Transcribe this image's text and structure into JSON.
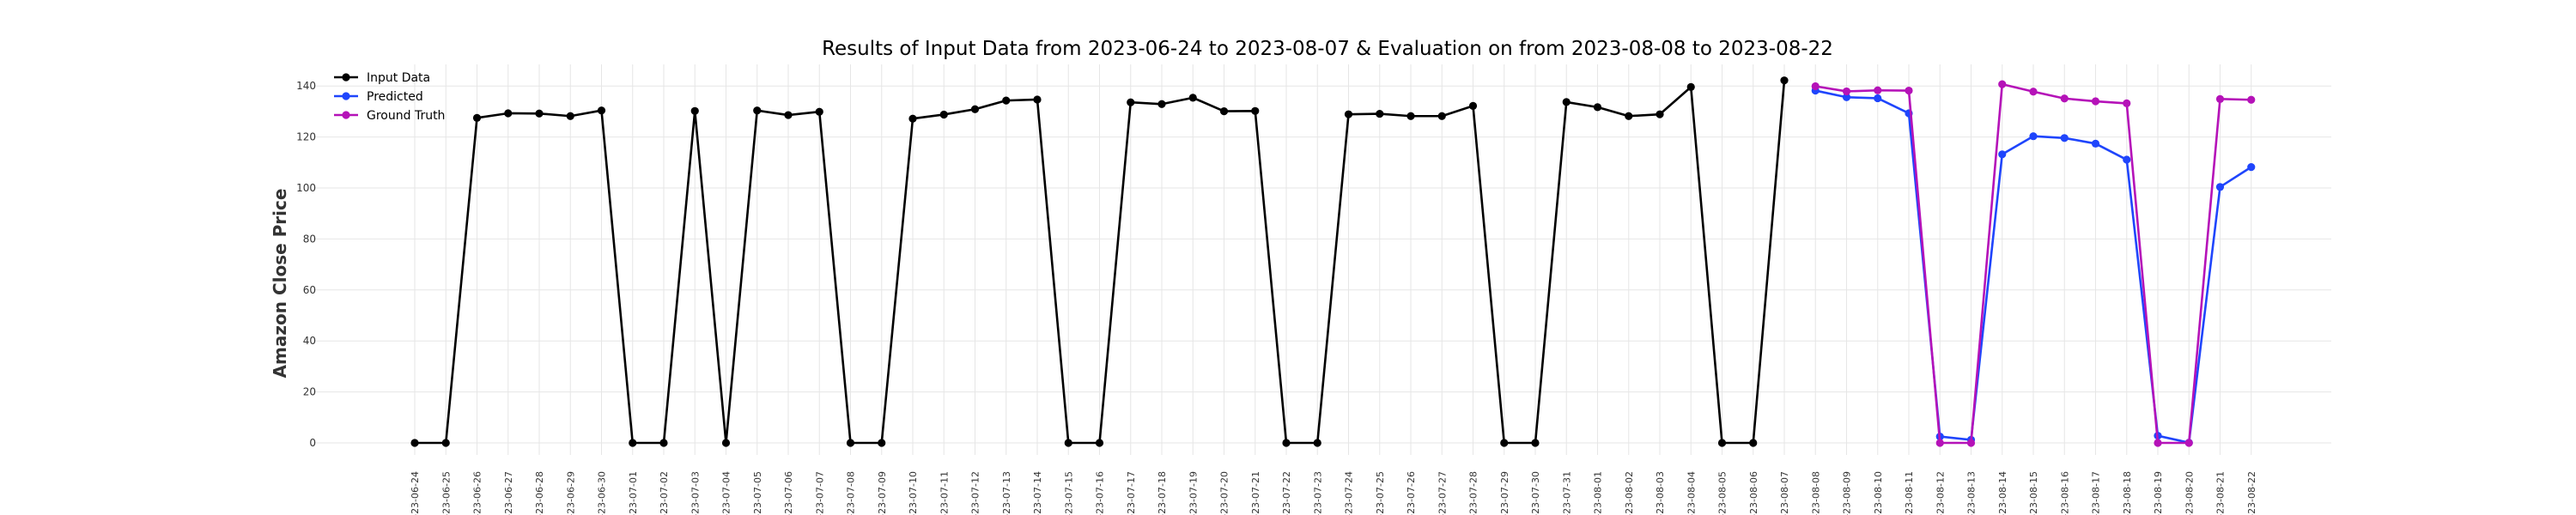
{
  "chart_data": {
    "type": "line",
    "title": "Results of Input Data from 2023-06-24 to 2023-08-07 & Evaluation on from 2023-08-08 to 2023-08-22",
    "xlabel": "",
    "ylabel": "Amazon Close Price",
    "ylim": [
      -8,
      148
    ],
    "yticks": [
      0,
      20,
      40,
      60,
      80,
      100,
      120,
      140
    ],
    "grid": true,
    "legend_position": "top-left",
    "x": [
      "2023-06-24",
      "2023-06-25",
      "2023-06-26",
      "2023-06-27",
      "2023-06-28",
      "2023-06-29",
      "2023-06-30",
      "2023-07-01",
      "2023-07-02",
      "2023-07-03",
      "2023-07-04",
      "2023-07-05",
      "2023-07-06",
      "2023-07-07",
      "2023-07-08",
      "2023-07-09",
      "2023-07-10",
      "2023-07-11",
      "2023-07-12",
      "2023-07-13",
      "2023-07-14",
      "2023-07-15",
      "2023-07-16",
      "2023-07-17",
      "2023-07-18",
      "2023-07-19",
      "2023-07-20",
      "2023-07-21",
      "2023-07-22",
      "2023-07-23",
      "2023-07-24",
      "2023-07-25",
      "2023-07-26",
      "2023-07-27",
      "2023-07-28",
      "2023-07-29",
      "2023-07-30",
      "2023-07-31",
      "2023-08-01",
      "2023-08-02",
      "2023-08-03",
      "2023-08-04",
      "2023-08-05",
      "2023-08-06",
      "2023-08-07",
      "2023-08-08",
      "2023-08-09",
      "2023-08-10",
      "2023-08-11",
      "2023-08-12",
      "2023-08-13",
      "2023-08-14",
      "2023-08-15",
      "2023-08-16",
      "2023-08-17",
      "2023-08-18",
      "2023-08-19",
      "2023-08-20",
      "2023-08-21",
      "2023-08-22"
    ],
    "xtick_labels": [
      "-23-06-24",
      "-23-06-25",
      "-23-06-26",
      "-23-06-27",
      "-23-06-28",
      "-23-06-29",
      "-23-06-30",
      "-23-07-01",
      "-23-07-02",
      "-23-07-03",
      "-23-07-04",
      "-23-07-05",
      "-23-07-06",
      "-23-07-07",
      "-23-07-08",
      "-23-07-09",
      "-23-07-10",
      "-23-07-11",
      "-23-07-12",
      "-23-07-13",
      "-23-07-14",
      "-23-07-15",
      "-23-07-16",
      "-23-07-17",
      "-23-07-18",
      "-23-07-19",
      "-23-07-20",
      "-23-07-21",
      "-23-07-22",
      "-23-07-23",
      "-23-07-24",
      "-23-07-25",
      "-23-07-26",
      "-23-07-27",
      "-23-07-28",
      "-23-07-29",
      "-23-07-30",
      "-23-07-31",
      "-23-08-01",
      "-23-08-02",
      "-23-08-03",
      "-23-08-04",
      "-23-08-05",
      "-23-08-06",
      "-23-08-07",
      "-23-08-08",
      "-23-08-09",
      "-23-08-10",
      "-23-08-11",
      "-23-08-12",
      "-23-08-13",
      "-23-08-14",
      "-23-08-15",
      "-23-08-16",
      "-23-08-17",
      "-23-08-18",
      "-23-08-19",
      "-23-08-20",
      "-23-08-21",
      "-23-08-22"
    ],
    "series": [
      {
        "name": "Input Data",
        "color": "#000000",
        "x": [
          "2023-06-24",
          "2023-06-25",
          "2023-06-26",
          "2023-06-27",
          "2023-06-28",
          "2023-06-29",
          "2023-06-30",
          "2023-07-01",
          "2023-07-02",
          "2023-07-03",
          "2023-07-04",
          "2023-07-05",
          "2023-07-06",
          "2023-07-07",
          "2023-07-08",
          "2023-07-09",
          "2023-07-10",
          "2023-07-11",
          "2023-07-12",
          "2023-07-13",
          "2023-07-14",
          "2023-07-15",
          "2023-07-16",
          "2023-07-17",
          "2023-07-18",
          "2023-07-19",
          "2023-07-20",
          "2023-07-21",
          "2023-07-22",
          "2023-07-23",
          "2023-07-24",
          "2023-07-25",
          "2023-07-26",
          "2023-07-27",
          "2023-07-28",
          "2023-07-29",
          "2023-07-30",
          "2023-07-31",
          "2023-08-01",
          "2023-08-02",
          "2023-08-03",
          "2023-08-04",
          "2023-08-05",
          "2023-08-06",
          "2023-08-07"
        ],
        "values": [
          0,
          0,
          127.5,
          129.3,
          129.2,
          128.2,
          130.4,
          0,
          0,
          130.2,
          0,
          130.4,
          128.6,
          129.9,
          0,
          0,
          127.2,
          128.8,
          130.9,
          134.3,
          134.7,
          0,
          0,
          133.6,
          132.9,
          135.4,
          130.1,
          130.2,
          0,
          0,
          128.9,
          129.1,
          128.2,
          128.2,
          132.2,
          0,
          0,
          133.7,
          131.7,
          128.2,
          128.9,
          139.6,
          0,
          0,
          142.2
        ]
      },
      {
        "name": "Predicted",
        "color": "#1f45fc",
        "x": [
          "2023-08-08",
          "2023-08-09",
          "2023-08-10",
          "2023-08-11",
          "2023-08-12",
          "2023-08-13",
          "2023-08-14",
          "2023-08-15",
          "2023-08-16",
          "2023-08-17",
          "2023-08-18",
          "2023-08-19",
          "2023-08-20",
          "2023-08-21",
          "2023-08-22"
        ],
        "values": [
          138.2,
          135.6,
          135.2,
          129.3,
          2.5,
          1.2,
          113.2,
          120.3,
          119.6,
          117.4,
          111.1,
          2.8,
          0.1,
          100.4,
          108.2
        ]
      },
      {
        "name": "Ground Truth",
        "color": "#b512b8",
        "x": [
          "2023-08-08",
          "2023-08-09",
          "2023-08-10",
          "2023-08-11",
          "2023-08-12",
          "2023-08-13",
          "2023-08-14",
          "2023-08-15",
          "2023-08-16",
          "2023-08-17",
          "2023-08-18",
          "2023-08-19",
          "2023-08-20",
          "2023-08-21",
          "2023-08-22"
        ],
        "values": [
          139.9,
          137.9,
          138.3,
          138.2,
          0,
          0,
          140.7,
          137.8,
          135.1,
          134.0,
          133.2,
          0,
          0,
          134.9,
          134.6
        ]
      }
    ]
  }
}
